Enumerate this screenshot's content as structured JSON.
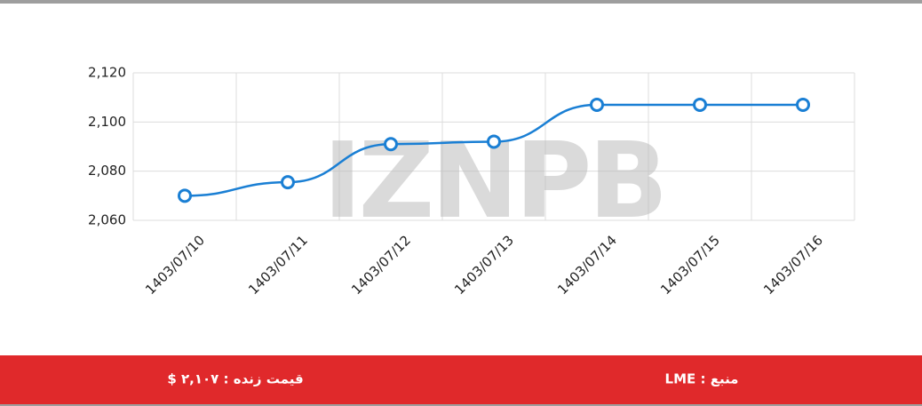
{
  "chart_data": {
    "type": "line",
    "categories": [
      "1403/07/10",
      "1403/07/11",
      "1403/07/12",
      "1403/07/13",
      "1403/07/14",
      "1403/07/15",
      "1403/07/16"
    ],
    "values": [
      2070,
      2075.5,
      2091,
      2092,
      2107,
      2107,
      2107
    ],
    "color": "#1a7fd4",
    "ylim": [
      2060,
      2120
    ],
    "yticks": [
      {
        "value": 2060,
        "label": "2,060"
      },
      {
        "value": 2080,
        "label": "2,080"
      },
      {
        "value": 2100,
        "label": "2,100"
      },
      {
        "value": 2120,
        "label": "2,120"
      }
    ],
    "grid": true,
    "watermark": "IZNPB"
  },
  "footer": {
    "live_price": "قیمت زنده : ۲,۱۰۷ $",
    "source": "منبع : LME"
  }
}
